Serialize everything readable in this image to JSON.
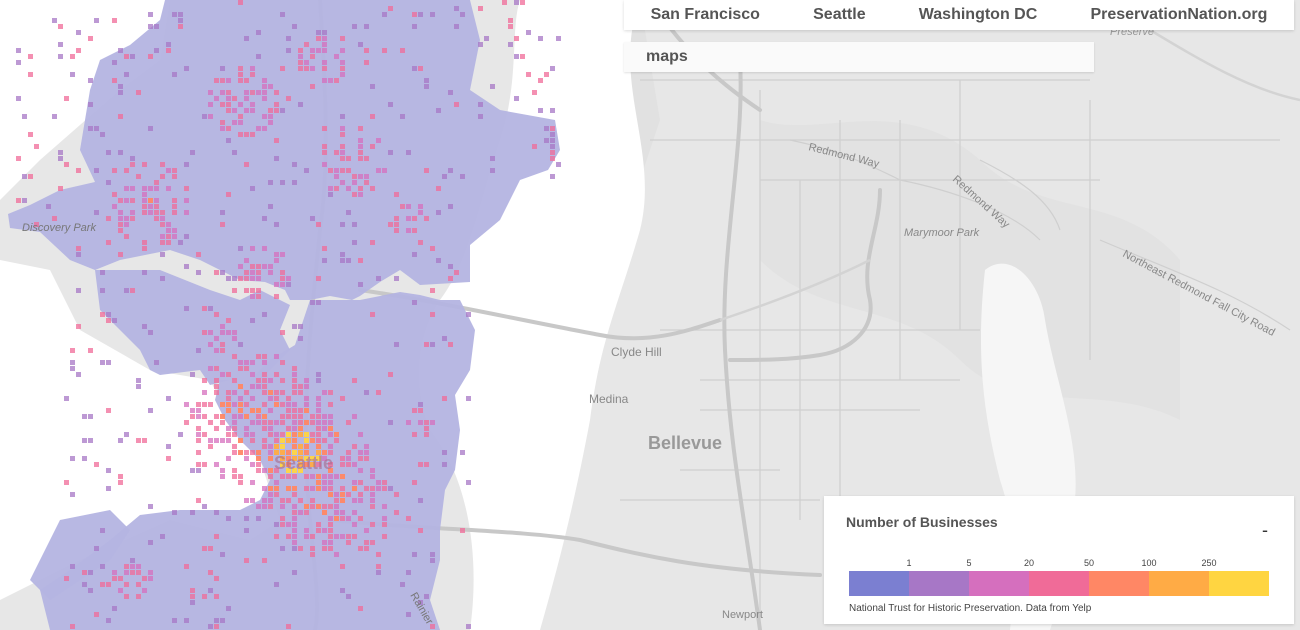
{
  "nav": {
    "items": [
      "San Francisco",
      "Seattle",
      "Washington DC",
      "PreservationNation.org"
    ]
  },
  "subnav": {
    "label": "maps"
  },
  "map": {
    "place_labels": {
      "discovery_park": "Discovery Park",
      "clyde_hill": "Clyde Hill",
      "medina": "Medina",
      "bellevue": "Bellevue",
      "seattle": "Seattle",
      "redmond_way_1": "Redmond Way",
      "redmond_way_2": "Redmond Way",
      "marymoor_park": "Marymoor Park",
      "ne_redmond_fall_city_road": "Northeast Redmond Fall City Road",
      "newport": "Newport",
      "preserve": "Preserve",
      "rainier": "Rainier"
    },
    "heat_colors": [
      "#7b7fd1",
      "#a777c6",
      "#d56fbe",
      "#f06b98",
      "#ff8765",
      "#ffab45",
      "#ffd541"
    ],
    "base_fill": "#b4b4e2",
    "water_color": "#ffffff",
    "land_color": "#e6e6e6"
  },
  "legend": {
    "title": "Number of Businesses",
    "toggle": "-",
    "ticks": [
      "1",
      "5",
      "20",
      "50",
      "100",
      "250"
    ],
    "colors": [
      "#7b7fd1",
      "#a777c6",
      "#d56fbe",
      "#f06b98",
      "#ff8765",
      "#ffab45",
      "#ffd541"
    ],
    "credit": "National Trust for Historic Preservation. Data from Yelp"
  }
}
